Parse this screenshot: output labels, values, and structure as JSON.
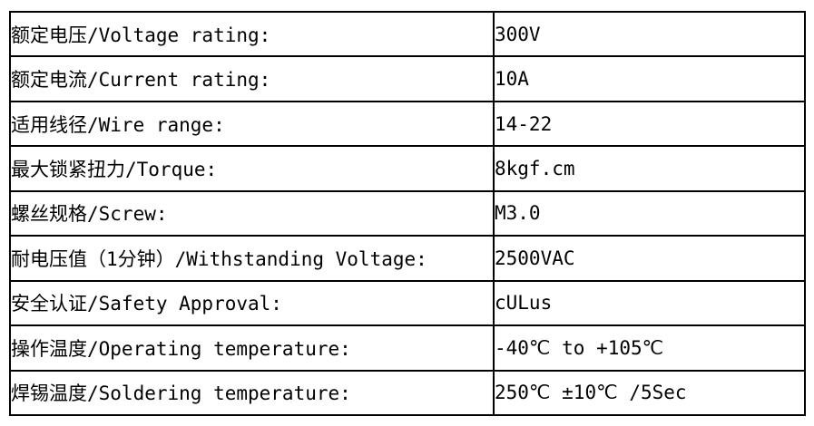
{
  "table": {
    "name": "product-specifications",
    "border_color": "#000000",
    "background_color": "#ffffff",
    "text_color": "#000000",
    "columns": [
      "parameter",
      "value"
    ],
    "rows": [
      {
        "label": "额定电压/Voltage rating:",
        "value": "300V"
      },
      {
        "label": "额定电流/Current rating:",
        "value": "10A"
      },
      {
        "label": "适用线径/Wire range:",
        "value": "14-22"
      },
      {
        "label": "最大锁紧扭力/Torque:",
        "value": "8kgf.cm"
      },
      {
        "label": "螺丝规格/Screw:",
        "value": "M3.0"
      },
      {
        "label": "耐电压值（1分钟）/Withstanding Voltage:",
        "value": "2500VAC"
      },
      {
        "label": "安全认证/Safety Approval:",
        "value": "cULus"
      },
      {
        "label": "操作温度/Operating temperature:",
        "value": "-40℃ to +105℃"
      },
      {
        "label": "焊锡温度/Soldering temperature:",
        "value": "250℃ ±10℃ /5Sec"
      }
    ]
  }
}
